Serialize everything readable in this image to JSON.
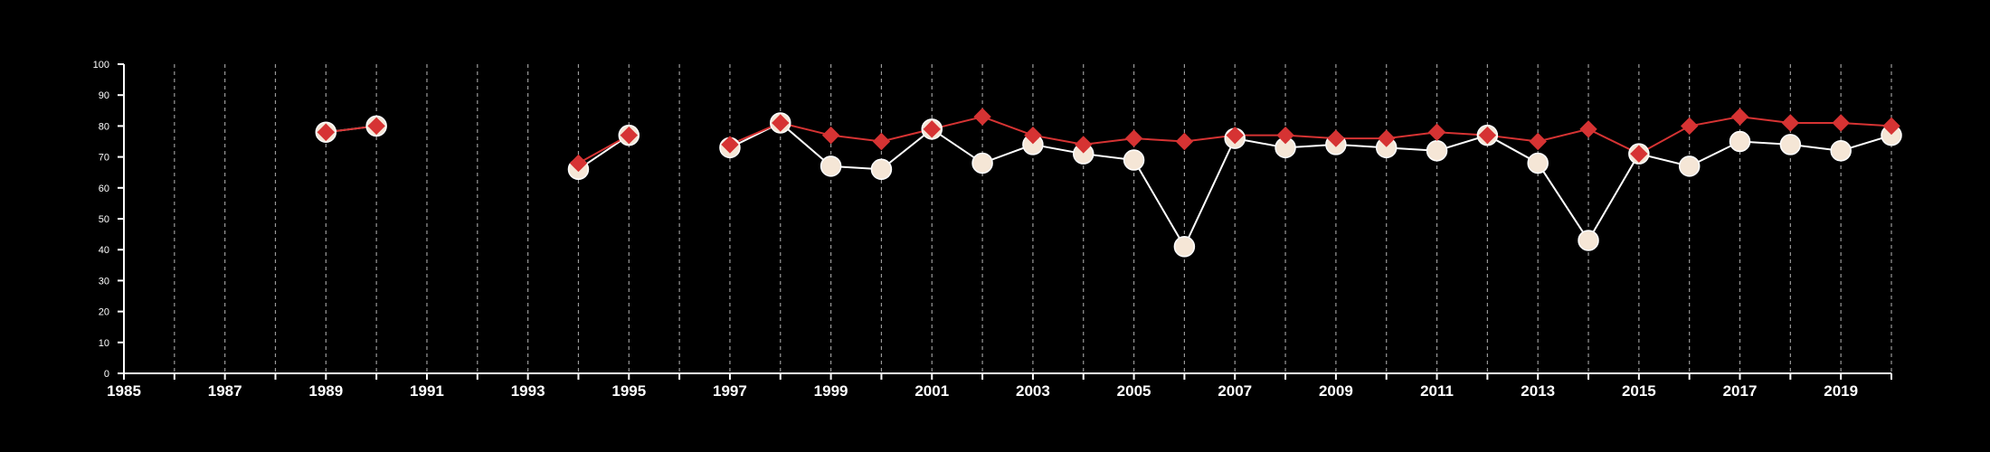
{
  "chart_data": {
    "type": "line",
    "title": "",
    "xlabel": "",
    "ylabel": "",
    "xlim": [
      1985,
      2020
    ],
    "ylim": [
      0,
      100
    ],
    "x_ticks": [
      1985,
      1987,
      1989,
      1991,
      1993,
      1995,
      1997,
      1999,
      2001,
      2003,
      2005,
      2007,
      2009,
      2011,
      2013,
      2015,
      2017,
      2019
    ],
    "x_tick_labels": [
      "1985",
      "1987",
      "1989",
      "1991",
      "1993",
      "1995",
      "1997",
      "1999",
      "2001",
      "2003",
      "2005",
      "2007",
      "2009",
      "2011",
      "2013",
      "2015",
      "2017",
      "2019"
    ],
    "y_ticks": [
      0,
      10,
      20,
      30,
      40,
      50,
      60,
      70,
      80,
      90,
      100
    ],
    "y_tick_labels": [
      "0",
      "10",
      "20",
      "30",
      "40",
      "50",
      "60",
      "70",
      "80",
      "90",
      "100"
    ],
    "vertical_gridlines": true,
    "legend": "none",
    "x": [
      1989,
      1990,
      1994,
      1995,
      1997,
      1998,
      1999,
      2000,
      2001,
      2002,
      2003,
      2004,
      2005,
      2006,
      2007,
      2008,
      2009,
      2010,
      2011,
      2012,
      2013,
      2014,
      2015,
      2016,
      2017,
      2018,
      2019,
      2020
    ],
    "series": [
      {
        "marker": "circle",
        "color": "#ffffff",
        "fill": "#f5e6d6",
        "values": [
          78,
          80,
          66,
          77,
          73,
          81,
          67,
          66,
          79,
          68,
          74,
          71,
          69,
          41,
          76,
          73,
          74,
          73,
          72,
          77,
          68,
          43,
          71,
          67,
          75,
          74,
          72,
          77
        ]
      },
      {
        "marker": "diamond",
        "color": "#d63333",
        "fill": "#d63333",
        "values": [
          78,
          80,
          68,
          77,
          74,
          81,
          77,
          75,
          79,
          83,
          77,
          74,
          76,
          75,
          77,
          77,
          76,
          76,
          78,
          77,
          75,
          79,
          71,
          80,
          83,
          81,
          81,
          80
        ]
      }
    ]
  }
}
